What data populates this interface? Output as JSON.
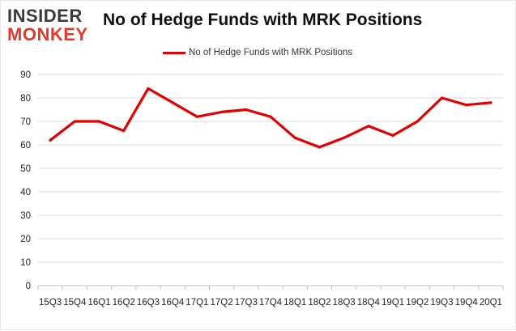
{
  "logo": {
    "line1": "INSIDER",
    "line2": "MONKEY"
  },
  "chart_data": {
    "type": "line",
    "title": "No of Hedge Funds with MRK Positions",
    "xlabel": "",
    "ylabel": "",
    "categories": [
      "15Q3",
      "15Q4",
      "16Q1",
      "16Q2",
      "16Q3",
      "16Q4",
      "17Q1",
      "17Q2",
      "17Q3",
      "17Q4",
      "18Q1",
      "18Q2",
      "18Q3",
      "18Q4",
      "19Q1",
      "19Q2",
      "19Q3",
      "19Q4",
      "20Q1"
    ],
    "series": [
      {
        "name": "No of Hedge Funds with MRK Positions",
        "values": [
          62,
          70,
          70,
          66,
          84,
          78,
          72,
          74,
          75,
          72,
          63,
          59,
          63,
          68,
          64,
          70,
          80,
          77,
          78
        ]
      }
    ],
    "ylim": [
      0,
      90
    ],
    "yticks": [
      0,
      10,
      20,
      30,
      40,
      50,
      60,
      70,
      80,
      90
    ],
    "grid": true,
    "legend_position": "top-center",
    "colors": {
      "line": "#e00000",
      "grid": "#d9d9d9",
      "logo_accent": "#e03a2a"
    }
  }
}
